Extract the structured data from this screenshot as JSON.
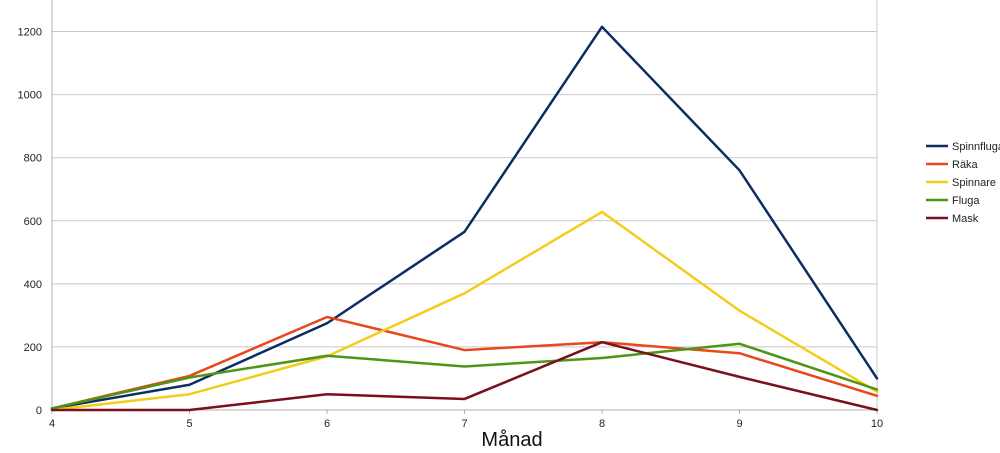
{
  "chart_data": {
    "type": "line",
    "title": "",
    "xlabel": "Månad",
    "ylabel": "",
    "x": [
      4,
      5,
      6,
      7,
      8,
      9,
      10
    ],
    "xlim": [
      4,
      10
    ],
    "ylim": [
      0,
      1300
    ],
    "yticks": [
      0,
      200,
      400,
      600,
      800,
      1000,
      1200
    ],
    "grid": true,
    "legend_position": "right",
    "series": [
      {
        "name": "Spinnfluga",
        "color": "#0d2d62",
        "values": [
          5,
          80,
          275,
          565,
          1215,
          760,
          100
        ]
      },
      {
        "name": "Räka",
        "color": "#e8481c",
        "values": [
          5,
          108,
          295,
          190,
          215,
          180,
          45
        ]
      },
      {
        "name": "Spinnare",
        "color": "#f2cd1c",
        "values": [
          0,
          50,
          170,
          370,
          628,
          315,
          58
        ]
      },
      {
        "name": "Fluga",
        "color": "#4e9416",
        "values": [
          5,
          103,
          172,
          138,
          165,
          210,
          65
        ]
      },
      {
        "name": "Mask",
        "color": "#7a0f1f",
        "values": [
          0,
          0,
          50,
          35,
          215,
          105,
          0
        ]
      }
    ]
  }
}
